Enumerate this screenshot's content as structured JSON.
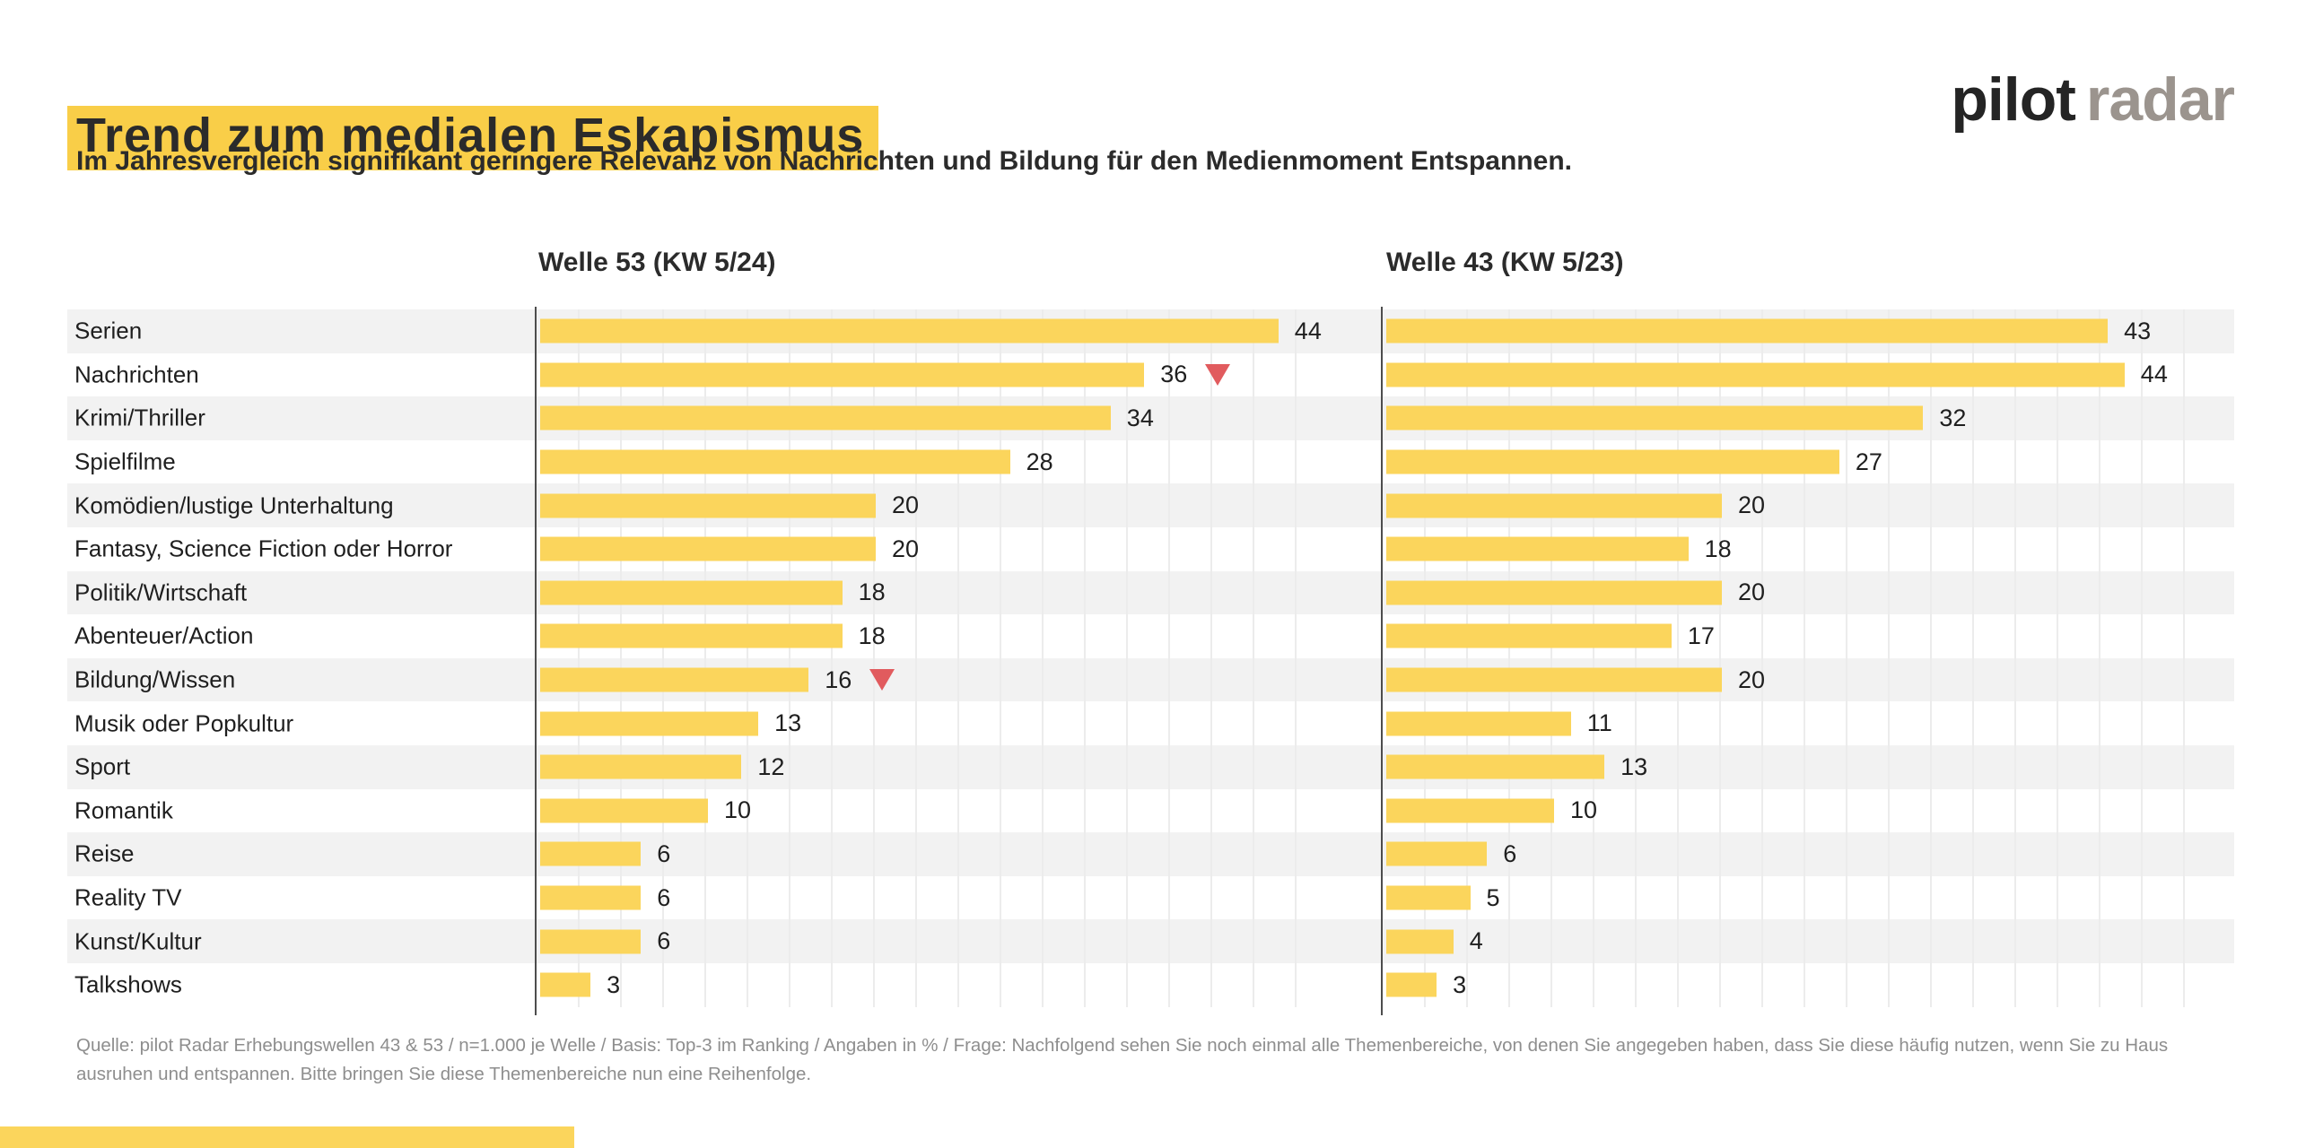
{
  "title": "Trend zum medialen Eskapismus",
  "subtitle": "Im Jahresvergleich signifikant geringere Relevanz von Nachrichten und Bildung für den Medienmoment Entspannen.",
  "logo": {
    "primary": "pilot",
    "secondary": "radar"
  },
  "footer": {
    "line1": "Quelle: pilot Radar Erhebungswellen 43 & 53 / n=1.000 je Welle / Basis: Top-3 im Ranking / Angaben in % / Frage: Nachfolgend sehen Sie noch einmal alle Themenbereiche, von denen Sie angegeben haben, dass Sie diese häufig nutzen, wenn Sie zu Haus",
    "line2": "ausruhen und entspannen. Bitte bringen Sie diese Themenbereiche nun eine Reihenfolge."
  },
  "colors": {
    "bar_yellow": "#FBD55C",
    "highlight_yellow": "#F9CE48",
    "marker_red": "#E15B5E",
    "stripe_gray": "#F2F2F2",
    "text_dark": "#242424",
    "logo_gray": "#9B948E",
    "footer_gray": "#8E8E8E"
  },
  "chart_data": {
    "type": "bar",
    "orientation": "horizontal",
    "unit": "%",
    "title": "Trend zum medialen Eskapismus",
    "gridlines": true,
    "xlim": [
      0,
      47
    ],
    "categories": [
      "Serien",
      "Nachrichten",
      "Krimi/Thriller",
      "Spielfilme",
      "Komödien/lustige Unterhaltung",
      "Fantasy, Science Fiction oder Horror",
      "Politik/Wirtschaft",
      "Abenteuer/Action",
      "Bildung/Wissen",
      "Musik oder Popkultur",
      "Sport",
      "Romantik",
      "Reise",
      "Reality TV",
      "Kunst/Kultur",
      "Talkshows"
    ],
    "series": [
      {
        "name": "Welle 53 (KW 5/24)",
        "values": [
          44,
          36,
          34,
          28,
          20,
          20,
          18,
          18,
          16,
          13,
          12,
          10,
          6,
          6,
          6,
          3
        ]
      },
      {
        "name": "Welle 43 (KW 5/23)",
        "values": [
          43,
          44,
          32,
          27,
          20,
          18,
          20,
          17,
          20,
          11,
          13,
          10,
          6,
          5,
          4,
          3
        ]
      }
    ],
    "significant_decrease_rows": [
      "Nachrichten",
      "Bildung/Wissen"
    ]
  }
}
